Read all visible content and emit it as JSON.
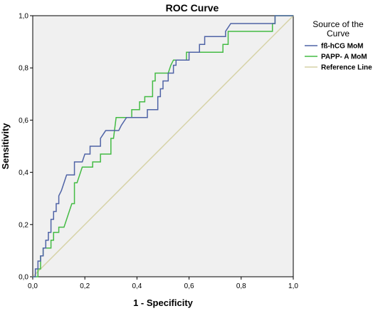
{
  "chart_data": {
    "type": "line",
    "title": "ROC Curve",
    "xlabel": "1 - Specificity",
    "ylabel": "Sensitivity",
    "xlim": [
      0,
      1
    ],
    "ylim": [
      0,
      1
    ],
    "xticks": [
      "0,0",
      "0,2",
      "0,4",
      "0,6",
      "0,8",
      "1,0"
    ],
    "yticks": [
      "0,0",
      "0,2",
      "0,4",
      "0,6",
      "0,8",
      "1,0"
    ],
    "grid": false,
    "legend": {
      "title_line1": "Source of the",
      "title_line2": "Curve",
      "placement": "right"
    },
    "series": [
      {
        "name": "fß-hCG MoM",
        "color": "#4f63a6",
        "points": [
          [
            0,
            0
          ],
          [
            0.01,
            0
          ],
          [
            0.01,
            0.03
          ],
          [
            0.02,
            0.03
          ],
          [
            0.02,
            0.06
          ],
          [
            0.03,
            0.06
          ],
          [
            0.03,
            0.08
          ],
          [
            0.04,
            0.08
          ],
          [
            0.04,
            0.11
          ],
          [
            0.05,
            0.11
          ],
          [
            0.05,
            0.14
          ],
          [
            0.06,
            0.14
          ],
          [
            0.06,
            0.17
          ],
          [
            0.07,
            0.17
          ],
          [
            0.07,
            0.22
          ],
          [
            0.08,
            0.22
          ],
          [
            0.08,
            0.25
          ],
          [
            0.09,
            0.25
          ],
          [
            0.09,
            0.28
          ],
          [
            0.1,
            0.28
          ],
          [
            0.1,
            0.31
          ],
          [
            0.11,
            0.33
          ],
          [
            0.12,
            0.36
          ],
          [
            0.13,
            0.39
          ],
          [
            0.16,
            0.39
          ],
          [
            0.16,
            0.44
          ],
          [
            0.19,
            0.44
          ],
          [
            0.2,
            0.47
          ],
          [
            0.22,
            0.47
          ],
          [
            0.22,
            0.5
          ],
          [
            0.26,
            0.5
          ],
          [
            0.26,
            0.53
          ],
          [
            0.28,
            0.56
          ],
          [
            0.33,
            0.56
          ],
          [
            0.34,
            0.58
          ],
          [
            0.36,
            0.61
          ],
          [
            0.44,
            0.61
          ],
          [
            0.44,
            0.64
          ],
          [
            0.48,
            0.64
          ],
          [
            0.48,
            0.69
          ],
          [
            0.49,
            0.69
          ],
          [
            0.49,
            0.72
          ],
          [
            0.5,
            0.72
          ],
          [
            0.5,
            0.75
          ],
          [
            0.52,
            0.75
          ],
          [
            0.52,
            0.78
          ],
          [
            0.54,
            0.78
          ],
          [
            0.54,
            0.81
          ],
          [
            0.55,
            0.81
          ],
          [
            0.55,
            0.83
          ],
          [
            0.6,
            0.83
          ],
          [
            0.6,
            0.86
          ],
          [
            0.64,
            0.86
          ],
          [
            0.64,
            0.89
          ],
          [
            0.66,
            0.89
          ],
          [
            0.66,
            0.92
          ],
          [
            0.74,
            0.92
          ],
          [
            0.74,
            0.94
          ],
          [
            0.76,
            0.97
          ],
          [
            0.93,
            0.97
          ],
          [
            0.93,
            1.0
          ],
          [
            1.0,
            1.0
          ]
        ]
      },
      {
        "name": "PAPP- A MoM",
        "color": "#44bb44",
        "points": [
          [
            0,
            0
          ],
          [
            0.02,
            0
          ],
          [
            0.02,
            0.03
          ],
          [
            0.03,
            0.03
          ],
          [
            0.03,
            0.08
          ],
          [
            0.04,
            0.08
          ],
          [
            0.04,
            0.11
          ],
          [
            0.07,
            0.11
          ],
          [
            0.07,
            0.14
          ],
          [
            0.08,
            0.14
          ],
          [
            0.08,
            0.17
          ],
          [
            0.1,
            0.17
          ],
          [
            0.1,
            0.19
          ],
          [
            0.12,
            0.19
          ],
          [
            0.15,
            0.28
          ],
          [
            0.16,
            0.28
          ],
          [
            0.16,
            0.36
          ],
          [
            0.17,
            0.36
          ],
          [
            0.18,
            0.39
          ],
          [
            0.19,
            0.42
          ],
          [
            0.23,
            0.42
          ],
          [
            0.23,
            0.44
          ],
          [
            0.26,
            0.44
          ],
          [
            0.26,
            0.47
          ],
          [
            0.3,
            0.47
          ],
          [
            0.3,
            0.53
          ],
          [
            0.31,
            0.53
          ],
          [
            0.32,
            0.61
          ],
          [
            0.38,
            0.61
          ],
          [
            0.38,
            0.64
          ],
          [
            0.41,
            0.64
          ],
          [
            0.41,
            0.67
          ],
          [
            0.43,
            0.67
          ],
          [
            0.43,
            0.69
          ],
          [
            0.46,
            0.69
          ],
          [
            0.46,
            0.75
          ],
          [
            0.47,
            0.75
          ],
          [
            0.47,
            0.78
          ],
          [
            0.52,
            0.78
          ],
          [
            0.53,
            0.81
          ],
          [
            0.54,
            0.83
          ],
          [
            0.59,
            0.83
          ],
          [
            0.59,
            0.86
          ],
          [
            0.73,
            0.86
          ],
          [
            0.73,
            0.89
          ],
          [
            0.75,
            0.89
          ],
          [
            0.75,
            0.94
          ],
          [
            0.92,
            0.94
          ],
          [
            0.92,
            0.97
          ],
          [
            0.93,
            0.97
          ],
          [
            0.93,
            1.0
          ],
          [
            1.0,
            1.0
          ]
        ]
      },
      {
        "name": "Reference Line",
        "color": "#d6d2a6",
        "points": [
          [
            0,
            0
          ],
          [
            1,
            1
          ]
        ]
      }
    ]
  }
}
